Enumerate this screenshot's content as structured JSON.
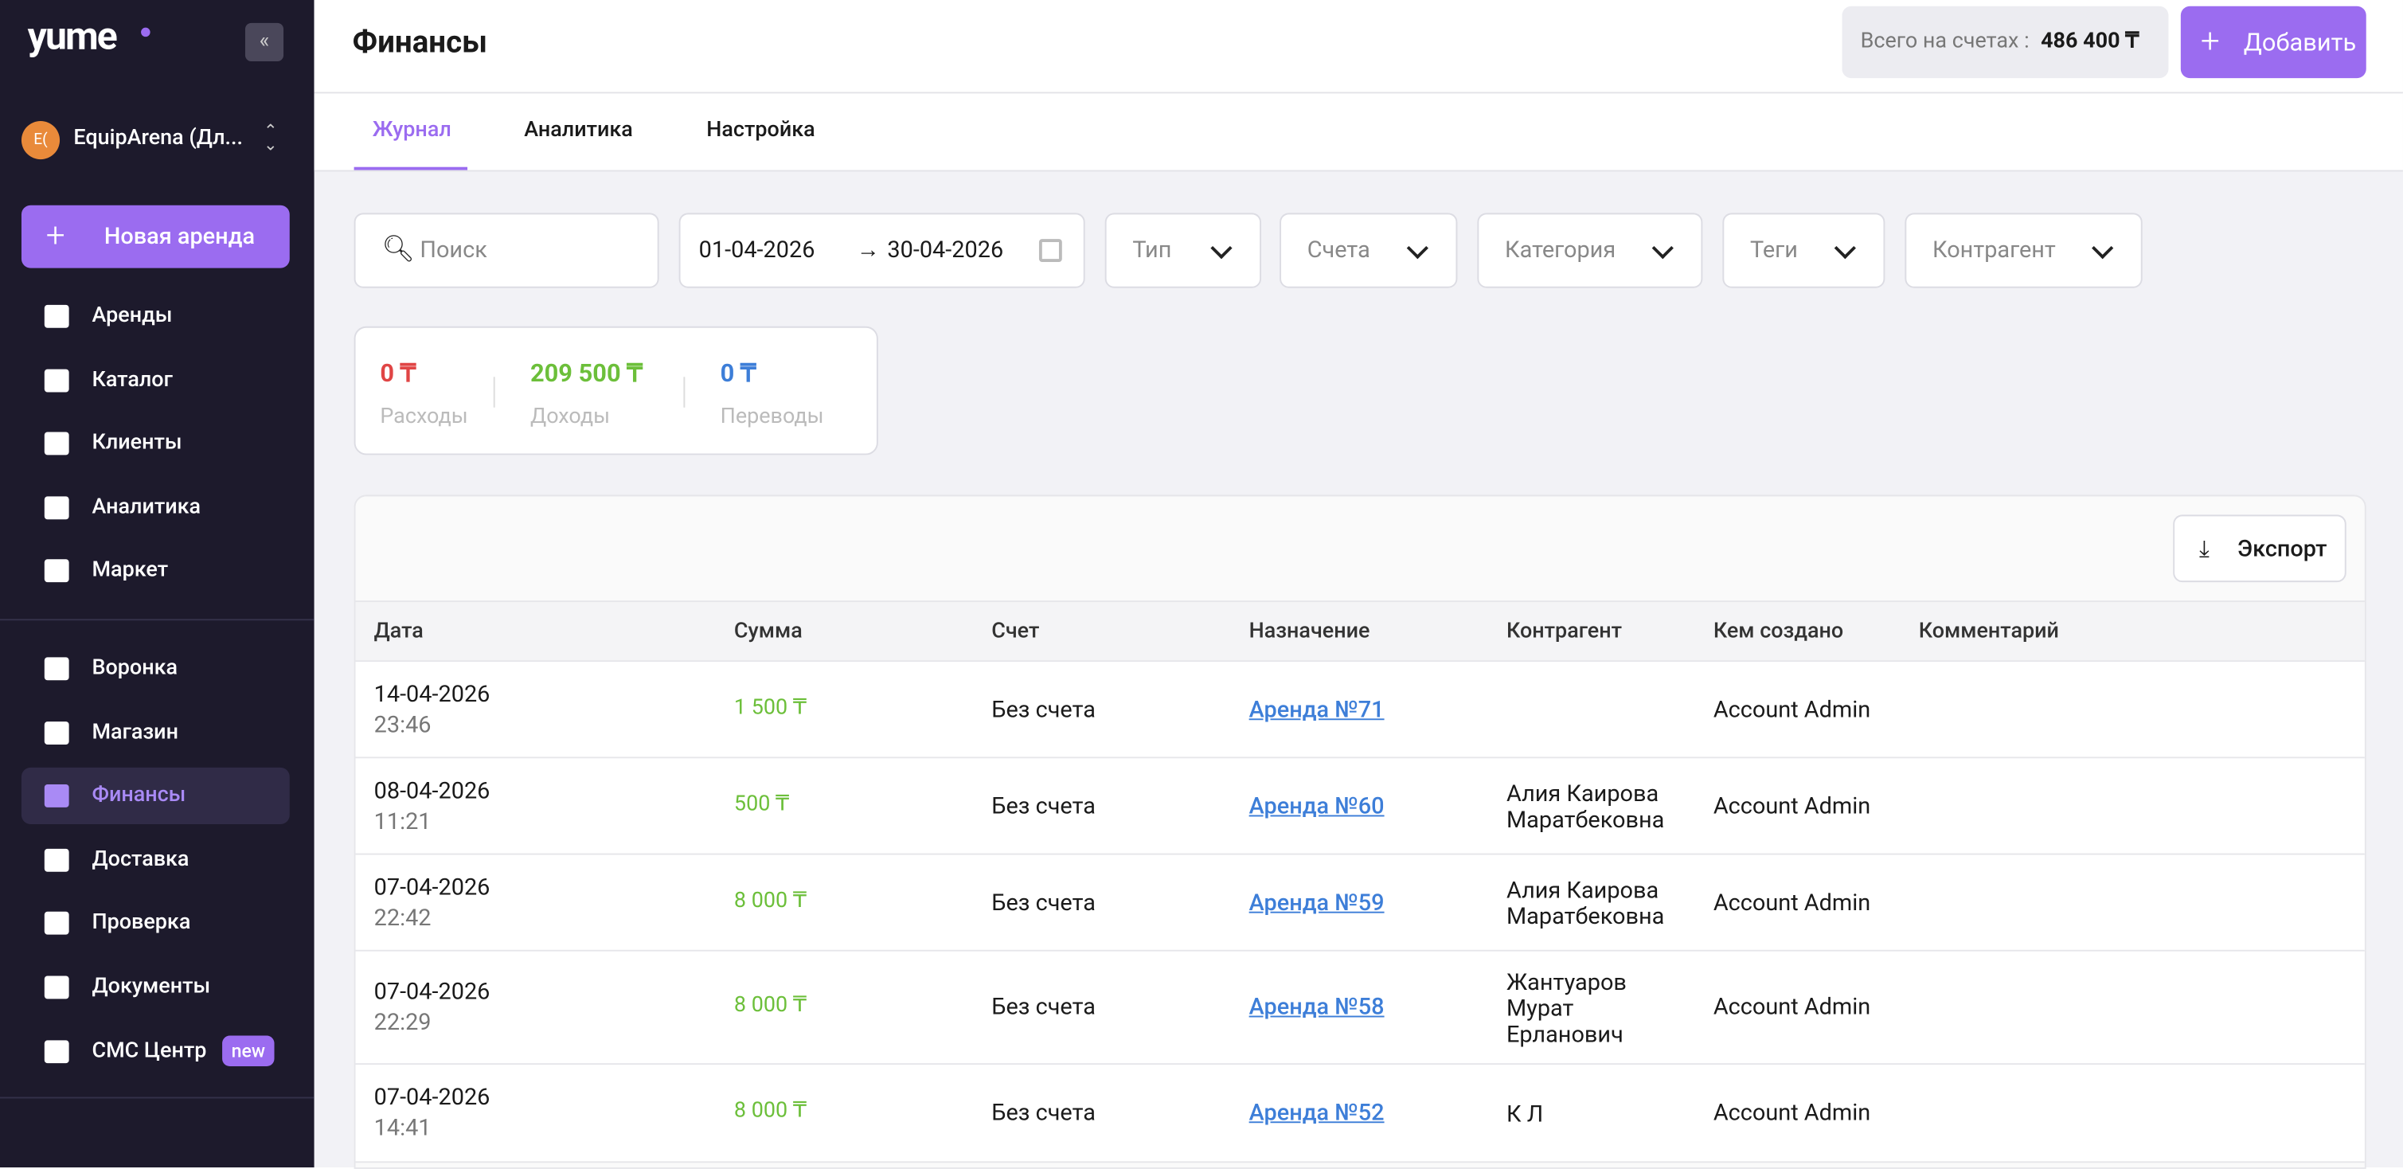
{
  "sidebar": {
    "logo": "yume",
    "org_initials": "E(",
    "org": "EquipArena (Дл...",
    "new_rental": "Новая аренда",
    "nav": [
      "Аренды",
      "Каталог",
      "Клиенты",
      "Аналитика",
      "Маркет"
    ],
    "nav2": [
      "Воронка",
      "Магазин",
      "Финансы",
      "Доставка",
      "Проверка",
      "Документы",
      "СМС Центр"
    ],
    "badge": "new"
  },
  "header": {
    "title": "Финансы",
    "balance_label": "Всего на счетах :",
    "balance": "486 400 ₸",
    "add": "Добавить"
  },
  "tabs": [
    "Журнал",
    "Аналитика",
    "Настройка"
  ],
  "filters": {
    "search": "Поиск",
    "date_from": "01-04-2026",
    "date_to": "30-04-2026",
    "selects": [
      "Тип",
      "Счета",
      "Категория",
      "Теги",
      "Контрагент"
    ]
  },
  "summary": [
    {
      "value": "0 ₸",
      "label": "Расходы"
    },
    {
      "value": "209 500 ₸",
      "label": "Доходы"
    },
    {
      "value": "0 ₸",
      "label": "Переводы"
    }
  ],
  "table": {
    "export": "Экспорт",
    "columns": [
      "Дата",
      "Сумма",
      "Счет",
      "Назначение",
      "Контрагент",
      "Кем создано",
      "Комментарий"
    ],
    "rows": [
      {
        "date": "14-04-2026",
        "time": "23:46",
        "amount": "1 500 ₸",
        "account": "Без счета",
        "purpose": "Аренда №71",
        "created_by": "Account Admin"
      },
      {
        "date": "08-04-2026",
        "time": "11:21",
        "amount": "500 ₸",
        "account": "Без счета",
        "purpose": "Аренда №60",
        "counterparty": "Алия Каирова Маратбековна",
        "created_by": "Account Admin"
      },
      {
        "date": "07-04-2026",
        "time": "22:42",
        "amount": "8 000 ₸",
        "account": "Без счета",
        "purpose": "Аренда №59",
        "counterparty": "Алия Каирова Маратбековна",
        "created_by": "Account Admin"
      },
      {
        "date": "07-04-2026",
        "time": "22:29",
        "amount": "8 000 ₸",
        "account": "Без счета",
        "purpose": "Аренда №58",
        "counterparty": "Жантуаров Мурат Ерланович",
        "created_by": "Account Admin"
      },
      {
        "date": "07-04-2026",
        "time": "14:41",
        "amount": "8 000 ₸",
        "account": "Без счета",
        "purpose": "Аренда №52",
        "counterparty": "К Л",
        "created_by": "Account Admin"
      }
    ]
  }
}
